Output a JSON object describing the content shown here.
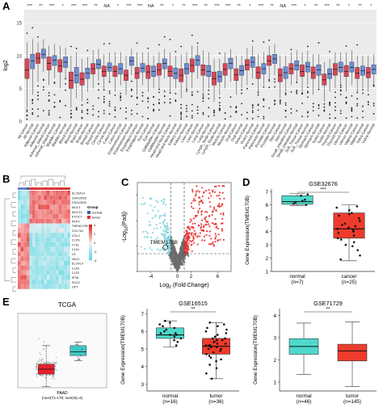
{
  "panels": {
    "A": {
      "label": "A",
      "chart_data": {
        "type": "box",
        "ylabel": "log2",
        "ylim": [
          0,
          17
        ],
        "yticks": [
          0,
          5,
          10,
          15
        ],
        "categories": [
          "All Cancer",
          "All Normal",
          "Adipose-Cancer",
          "Adipose-Normal",
          "Adrenal_Gland-Cancer",
          "Adrenal_Gland-Normal",
          "Bladder-Cancer",
          "Bladder-Normal",
          "Blood-Cancer",
          "Blood-Normal",
          "Brain-Cancer",
          "Brain-Normal",
          "Breast-Cancer",
          "Breast-Normal",
          "Cervix-Cancer",
          "Cervix-Normal",
          "Colon-Cancer",
          "Colon-Normal",
          "Endometrium-Cancer",
          "Endometrium-Normal",
          "Esophagus-Cancer",
          "Esophagus-Normal",
          "Eye-Cancer",
          "Eye-Normal",
          "Gallbladder-Cancer",
          "Gallbladder-Normal",
          "Head and Neck-Cancer",
          "Head and Neck-Normal",
          "Kidney-Cancer",
          "Kidney-Normal",
          "Liver-Cancer",
          "Liver-Normal",
          "Lung-Cancer",
          "Lung-Normal",
          "Lymph_Node-Cancer",
          "Lymph_Node-Normal",
          "Muscle-Cancer",
          "Muscle-Normal",
          "Oral-Cancer",
          "Oral-Normal",
          "Ovary-Cancer",
          "Ovary-Normal",
          "Pancreas-Cancer",
          "Pancreas-Normal",
          "Prostate-Cancer",
          "Prostate-Normal",
          "Skin-Cancer",
          "Skin-Normal",
          "Small_Intestine-Cancer",
          "Small_Intestine-Normal",
          "Soft_Tissue-Cancer",
          "Soft_Tissue-Normal",
          "Stomach-Cancer",
          "Stomach-Normal",
          "Testis-Cancer",
          "Testis-Normal",
          "Thyroid-Cancer",
          "Thyroid-Normal",
          "Uterus-Cancer",
          "Uterus-Normal",
          "Vagina-Cancer",
          "Vagina-Normal",
          "Vulva-Cancer",
          "Vulva-Normal"
        ],
        "significance": [
          "***",
          "",
          "**",
          "",
          "***",
          "",
          "*",
          "",
          "***",
          "",
          "***",
          "",
          "**",
          "",
          "NA",
          "",
          "*",
          "",
          "***",
          "",
          "***",
          "",
          "NA",
          "",
          "**",
          "",
          "*",
          "",
          "**",
          "",
          "***",
          "",
          "**",
          "",
          "***",
          "",
          "***",
          "",
          "**",
          "",
          "*",
          "",
          "***",
          "",
          "**",
          "",
          "NA",
          "",
          "***",
          "",
          "*",
          "",
          "**",
          "",
          "***",
          "",
          "**",
          "",
          "*",
          "",
          "**",
          "",
          "*",
          ""
        ],
        "box_stats": [
          {
            "q1": 6.5,
            "median": 7.8,
            "q3": 9.5,
            "wlo": 2,
            "whi": 12
          },
          {
            "q1": 8,
            "median": 9.2,
            "q3": 10.2,
            "wlo": 4,
            "whi": 12.5
          },
          {
            "q1": 8.8,
            "median": 9.6,
            "q3": 10.4,
            "wlo": 6,
            "whi": 12
          },
          {
            "q1": 9.6,
            "median": 10.2,
            "q3": 11,
            "wlo": 7.5,
            "whi": 12.5
          },
          {
            "q1": 7.8,
            "median": 8.8,
            "q3": 9.8,
            "wlo": 5.5,
            "whi": 11.5
          },
          {
            "q1": 8.5,
            "median": 9.3,
            "q3": 10,
            "wlo": 6.5,
            "whi": 11.8
          },
          {
            "q1": 7.5,
            "median": 8.4,
            "q3": 9.4,
            "wlo": 5,
            "whi": 11.5
          },
          {
            "q1": 8.2,
            "median": 9,
            "q3": 9.8,
            "wlo": 6.5,
            "whi": 11.2
          },
          {
            "q1": 5,
            "median": 6.2,
            "q3": 7.5,
            "wlo": 2,
            "whi": 10
          },
          {
            "q1": 5.8,
            "median": 7,
            "q3": 8.2,
            "wlo": 3.5,
            "whi": 10.5
          },
          {
            "q1": 5.5,
            "median": 6.4,
            "q3": 7.4,
            "wlo": 3,
            "whi": 9.5
          },
          {
            "q1": 6.5,
            "median": 7.3,
            "q3": 8.1,
            "wlo": 4.5,
            "whi": 9.8
          },
          {
            "q1": 7.2,
            "median": 8,
            "q3": 8.8,
            "wlo": 5,
            "whi": 10.8
          },
          {
            "q1": 8,
            "median": 8.7,
            "q3": 9.4,
            "wlo": 6.2,
            "whi": 11
          },
          {
            "q1": 6.8,
            "median": 7.6,
            "q3": 8.4,
            "wlo": 4.8,
            "whi": 10.2
          },
          {
            "q1": 7.6,
            "median": 8.2,
            "q3": 8.9,
            "wlo": 6,
            "whi": 10.5
          },
          {
            "q1": 6.8,
            "median": 7.6,
            "q3": 8.4,
            "wlo": 4.5,
            "whi": 10.5
          },
          {
            "q1": 7.2,
            "median": 8,
            "q3": 8.8,
            "wlo": 5.5,
            "whi": 10.5
          },
          {
            "q1": 6.2,
            "median": 7,
            "q3": 7.8,
            "wlo": 4,
            "whi": 10
          },
          {
            "q1": 8.5,
            "median": 9.2,
            "q3": 9.8,
            "wlo": 7,
            "whi": 11
          },
          {
            "q1": 6.5,
            "median": 7.3,
            "q3": 8.2,
            "wlo": 4,
            "whi": 10.5
          },
          {
            "q1": 7.5,
            "median": 8.1,
            "q3": 8.8,
            "wlo": 5.5,
            "whi": 10.5
          },
          {
            "q1": 6.5,
            "median": 7.5,
            "q3": 8.5,
            "wlo": 4.5,
            "whi": 10.5
          },
          {
            "q1": 6.8,
            "median": 7.6,
            "q3": 8.4,
            "wlo": 5,
            "whi": 10
          },
          {
            "q1": 7,
            "median": 7.8,
            "q3": 8.8,
            "wlo": 5,
            "whi": 10.5
          },
          {
            "q1": 8,
            "median": 8.8,
            "q3": 9.5,
            "wlo": 6.5,
            "whi": 11
          },
          {
            "q1": 6.8,
            "median": 7.6,
            "q3": 8.4,
            "wlo": 4.5,
            "whi": 10.5
          },
          {
            "q1": 6.5,
            "median": 7.3,
            "q3": 8.1,
            "wlo": 5,
            "whi": 10
          },
          {
            "q1": 6,
            "median": 7,
            "q3": 8,
            "wlo": 3.5,
            "whi": 10.2
          },
          {
            "q1": 7.2,
            "median": 8,
            "q3": 8.8,
            "wlo": 5,
            "whi": 10.5
          },
          {
            "q1": 7.5,
            "median": 8.5,
            "q3": 9.5,
            "wlo": 5,
            "whi": 11.5
          },
          {
            "q1": 8.5,
            "median": 9.3,
            "q3": 10,
            "wlo": 6.5,
            "whi": 11.5
          },
          {
            "q1": 7,
            "median": 7.8,
            "q3": 8.6,
            "wlo": 4.5,
            "whi": 10.8
          },
          {
            "q1": 6.8,
            "median": 7.6,
            "q3": 8.5,
            "wlo": 5,
            "whi": 10.5
          },
          {
            "q1": 5.5,
            "median": 6.5,
            "q3": 7.5,
            "wlo": 3,
            "whi": 9.5
          },
          {
            "q1": 6,
            "median": 6.8,
            "q3": 7.6,
            "wlo": 4,
            "whi": 9.5
          },
          {
            "q1": 7,
            "median": 7.9,
            "q3": 8.8,
            "wlo": 5,
            "whi": 10.5
          },
          {
            "q1": 8,
            "median": 8.8,
            "q3": 9.6,
            "wlo": 6,
            "whi": 11
          },
          {
            "q1": 6.2,
            "median": 7.1,
            "q3": 8,
            "wlo": 4,
            "whi": 10
          },
          {
            "q1": 7,
            "median": 7.7,
            "q3": 8.5,
            "wlo": 5,
            "whi": 10
          },
          {
            "q1": 7.8,
            "median": 8.6,
            "q3": 9.4,
            "wlo": 5.5,
            "whi": 11.2
          },
          {
            "q1": 8.2,
            "median": 9,
            "q3": 9.8,
            "wlo": 6.5,
            "whi": 11.5
          },
          {
            "q1": 6.5,
            "median": 7.4,
            "q3": 8.3,
            "wlo": 4.5,
            "whi": 10.2
          },
          {
            "q1": 7.2,
            "median": 8,
            "q3": 8.8,
            "wlo": 5.5,
            "whi": 10.5
          },
          {
            "q1": 8.5,
            "median": 9.2,
            "q3": 10,
            "wlo": 6.5,
            "whi": 11.5
          },
          {
            "q1": 8.8,
            "median": 9.5,
            "q3": 10.2,
            "wlo": 7,
            "whi": 11.8
          },
          {
            "q1": 6,
            "median": 7,
            "q3": 8,
            "wlo": 3.5,
            "whi": 10
          },
          {
            "q1": 6.5,
            "median": 7.4,
            "q3": 8.3,
            "wlo": 4.5,
            "whi": 10
          },
          {
            "q1": 7.2,
            "median": 8,
            "q3": 8.8,
            "wlo": 5.5,
            "whi": 10.5
          },
          {
            "q1": 7.8,
            "median": 8.5,
            "q3": 9.2,
            "wlo": 6,
            "whi": 10.8
          },
          {
            "q1": 6.8,
            "median": 7.6,
            "q3": 8.6,
            "wlo": 4.5,
            "whi": 10.5
          },
          {
            "q1": 7.5,
            "median": 8.3,
            "q3": 9,
            "wlo": 5.5,
            "whi": 10.8
          },
          {
            "q1": 6.5,
            "median": 7.4,
            "q3": 8.3,
            "wlo": 4,
            "whi": 10.2
          },
          {
            "q1": 7,
            "median": 7.8,
            "q3": 8.6,
            "wlo": 5,
            "whi": 10.2
          },
          {
            "q1": 5.5,
            "median": 6.3,
            "q3": 7.2,
            "wlo": 3,
            "whi": 9
          },
          {
            "q1": 6.5,
            "median": 7.2,
            "q3": 8,
            "wlo": 4.5,
            "whi": 9.5
          },
          {
            "q1": 7,
            "median": 7.9,
            "q3": 8.8,
            "wlo": 5,
            "whi": 10.5
          },
          {
            "q1": 7.5,
            "median": 8.2,
            "q3": 9,
            "wlo": 5.5,
            "whi": 10.5
          },
          {
            "q1": 6.8,
            "median": 7.6,
            "q3": 8.5,
            "wlo": 4.5,
            "whi": 10.5
          },
          {
            "q1": 7.5,
            "median": 8.2,
            "q3": 9,
            "wlo": 5.5,
            "whi": 10.8
          },
          {
            "q1": 6.5,
            "median": 7.3,
            "q3": 8.2,
            "wlo": 4.5,
            "whi": 10
          },
          {
            "q1": 7,
            "median": 7.7,
            "q3": 8.4,
            "wlo": 5,
            "whi": 10
          },
          {
            "q1": 6.6,
            "median": 7.4,
            "q3": 8.2,
            "wlo": 4.5,
            "whi": 10
          },
          {
            "q1": 7.2,
            "median": 7.9,
            "q3": 8.6,
            "wlo": 5.5,
            "whi": 10.2
          }
        ],
        "colors": {
          "cancer": "#d9475a",
          "normal": "#6f8fd6"
        }
      }
    },
    "B": {
      "label": "B",
      "chart_data": {
        "type": "heatmap",
        "genes": [
          "SLC6A14",
          "CRACR2B",
          "CRACR2B",
          "MUC1",
          "MUC13",
          "EXOC7",
          "PKP3",
          "TMEM170B",
          "COL7A1",
          "COL2",
          "CLPS",
          "CTSL",
          "C1A1",
          "LR",
          "VAV3",
          "ELOVL4",
          "C1A2",
          "C1S2",
          "SPIA",
          "SOX2",
          "OPT"
        ],
        "legend_title": "Group",
        "legend_items": [
          "normal",
          "tumor"
        ],
        "scale_ticks": [
          "4",
          "2",
          "0",
          "-2",
          "-4"
        ],
        "group_colors": {
          "normal": "#3d5fa8",
          "tumor": "#e03030"
        }
      }
    },
    "C": {
      "label": "C",
      "chart_data": {
        "type": "scatter",
        "xlabel_base": "Log",
        "xlabel_sub": "2",
        "xlabel_rest": "(Fold Change)",
        "ylabel_pre": "-Log",
        "ylabel_sub": "10",
        "ylabel_rest": "(Padj)",
        "xticks": [
          "-4",
          "0",
          "2",
          "6"
        ],
        "ytick_values": [
          0,
          10,
          20,
          30
        ],
        "xlim": [
          -6,
          8
        ],
        "ylim": [
          0,
          35
        ],
        "annotation": "TMEM170B",
        "annotation_point": {
          "x": -1.8,
          "y": 9.5
        },
        "colors": {
          "down": "#7fd3df",
          "ns": "#6c6c6c",
          "up": "#e8302f"
        }
      }
    },
    "D": {
      "label": "D",
      "chart_data": {
        "type": "box",
        "title": "GSE32676",
        "ylabel": "Gene Expression(TMEM170B)",
        "yticks": [
          1,
          2,
          3,
          4,
          5,
          6,
          7
        ],
        "ylim": [
          1,
          7.2
        ],
        "significance": "***",
        "groups": [
          {
            "name": "normal",
            "n_label": "(n=7)",
            "q1": 6.05,
            "median": 6.25,
            "q3": 6.7,
            "wlo": 5.95,
            "whi": 6.85,
            "color": "#4ed9cc",
            "points": [
              6.1,
              6.2,
              6.3,
              6.7,
              6.0,
              6.4,
              6.8
            ]
          },
          {
            "name": "cancer",
            "n_label": "(n=25)",
            "q1": 3.5,
            "median": 4.2,
            "q3": 5.4,
            "wlo": 1.8,
            "whi": 6.0,
            "color": "#ef3b2c",
            "points": [
              1.9,
              2.2,
              2.6,
              2.9,
              3.2,
              3.4,
              3.5,
              3.7,
              3.9,
              4.0,
              4.1,
              4.2,
              4.3,
              4.4,
              4.6,
              4.8,
              5.0,
              5.2,
              5.4,
              5.6,
              5.8,
              5.9,
              3.0,
              4.5,
              5.3
            ]
          }
        ]
      }
    },
    "E": {
      "label": "E",
      "tcga": {
        "title": "TCGA",
        "xaxis_label": "PAAD",
        "n_labels": [
          "(num(T)=179; num(N)=4)"
        ],
        "groups": [
          {
            "name": "tumor",
            "q1": 0.55,
            "median": 0.75,
            "q3": 0.95,
            "wlo": 0.05,
            "whi": 1.7,
            "color": "#e6212d"
          },
          {
            "name": "normal",
            "q1": 1.3,
            "median": 1.45,
            "q3": 1.7,
            "wlo": 1.1,
            "whi": 1.85,
            "color": "#3fc9c5"
          }
        ],
        "ylim": [
          0,
          3
        ]
      },
      "gse16515": {
        "type": "box",
        "title": "GSE16515",
        "ylabel": "Gene Expression(TMEM170B)",
        "yticks": [
          3,
          4,
          5,
          6,
          7
        ],
        "ylim": [
          2.6,
          7.3
        ],
        "significance": "**",
        "groups": [
          {
            "name": "normal",
            "n_label": "(n=16)",
            "q1": 5.6,
            "median": 5.8,
            "q3": 6.2,
            "wlo": 5.1,
            "whi": 6.6,
            "color": "#4ed9cc",
            "points": [
              5.2,
              5.5,
              5.6,
              5.7,
              5.8,
              5.8,
              5.9,
              6.0,
              6.1,
              6.2,
              6.3,
              6.4,
              6.5,
              5.4,
              5.9,
              6.6
            ]
          },
          {
            "name": "tumor",
            "n_label": "(n=36)",
            "q1": 4.7,
            "median": 5.15,
            "q3": 5.6,
            "wlo": 3.3,
            "whi": 6.5,
            "color": "#ef3b2c",
            "points": [
              3.3,
              3.6,
              3.9,
              4.1,
              4.3,
              4.5,
              4.6,
              4.7,
              4.8,
              4.9,
              5.0,
              5.0,
              5.1,
              5.1,
              5.2,
              5.2,
              5.3,
              5.3,
              5.4,
              5.4,
              5.5,
              5.5,
              5.6,
              5.7,
              5.8,
              5.9,
              6.0,
              6.1,
              6.2,
              6.4,
              6.5,
              4.4,
              4.8,
              5.2,
              5.6,
              6.3
            ]
          }
        ]
      },
      "gse71729": {
        "type": "box",
        "title": "GSE71729",
        "ylabel": "Gene Expression(TMEM170B)",
        "yticks": [
          1,
          2,
          3,
          4
        ],
        "ylim": [
          0.6,
          4.3
        ],
        "significance": "**",
        "groups": [
          {
            "name": "normal",
            "n_label": "(n=46)",
            "q1": 2.25,
            "median": 2.6,
            "q3": 2.95,
            "wlo": 1.35,
            "whi": 3.65,
            "color": "#4ed9cc"
          },
          {
            "name": "tumor",
            "n_label": "(n=145)",
            "q1": 1.95,
            "median": 2.4,
            "q3": 2.7,
            "wlo": 0.8,
            "whi": 3.7,
            "color": "#ef3b2c"
          }
        ]
      }
    }
  }
}
